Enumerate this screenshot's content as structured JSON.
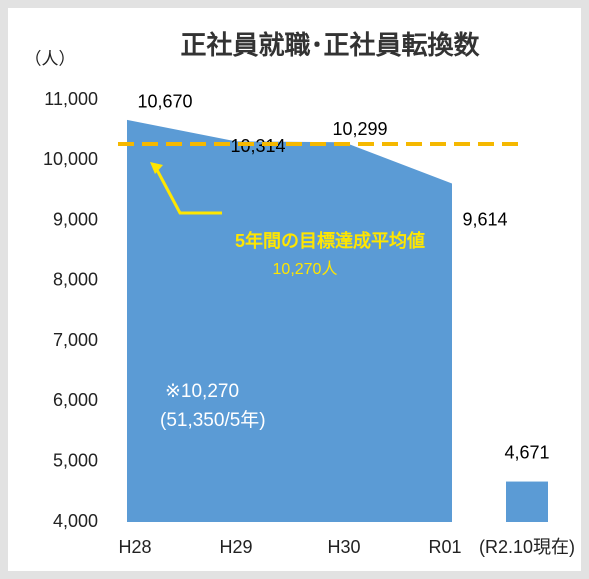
{
  "chart_data": {
    "type": "area",
    "title": "正社員就職･正社員転換数",
    "y_label": "（人）",
    "categories": [
      "H28",
      "H29",
      "H30",
      "R01",
      "(R2.10現在)"
    ],
    "series": [
      {
        "type": "area",
        "color": "#5b9bd5",
        "values": [
          10670,
          10314,
          10299,
          9614,
          null
        ],
        "value_labels": [
          "10,670",
          "10,314",
          "10,299",
          "9,614",
          null
        ]
      },
      {
        "type": "bar",
        "color": "#5b9bd5",
        "values": [
          null,
          null,
          null,
          null,
          4671
        ],
        "value_labels": [
          null,
          null,
          null,
          null,
          "4,671"
        ]
      }
    ],
    "reference_line": {
      "value": 10270,
      "color": "#f5b800",
      "label": "5年間の目標達成平均値",
      "value_label": "10,270人"
    },
    "annotations": [
      "※10,270",
      "(51,350/5年)"
    ],
    "ylim": [
      4000,
      11000
    ],
    "yticks": [
      {
        "value": 4000,
        "label": "4,000"
      },
      {
        "value": 5000,
        "label": "5,000"
      },
      {
        "value": 6000,
        "label": "6,000"
      },
      {
        "value": 7000,
        "label": "7,000"
      },
      {
        "value": 8000,
        "label": "8,000"
      },
      {
        "value": 9000,
        "label": "9,000"
      },
      {
        "value": 10000,
        "label": "10,000"
      },
      {
        "value": 11000,
        "label": "11,000"
      }
    ],
    "grid": false
  }
}
